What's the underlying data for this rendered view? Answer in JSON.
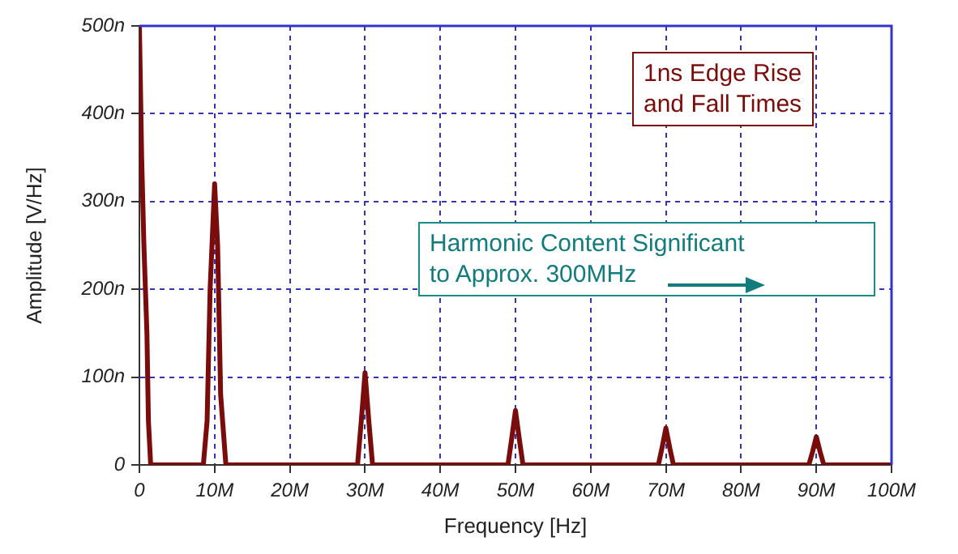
{
  "chart_data": {
    "type": "line",
    "xlabel": "Frequency [Hz]",
    "ylabel": "Amplitude [V/Hz]",
    "annotations": [
      "1ns Edge Rise\nand Fall Times",
      "Harmonic Content Significant\nto Approx. 300MHz"
    ],
    "x": [
      0,
      300000,
      600000,
      1000000,
      1200000,
      1500000,
      8500000,
      9000000,
      9400000,
      10000000,
      10400000,
      10800000,
      11500000,
      29000000,
      29500000,
      30000000,
      30500000,
      31000000,
      49000000,
      49500000,
      50000000,
      50500000,
      51000000,
      69000000,
      69500000,
      70000000,
      70500000,
      71000000,
      89000000,
      89500000,
      90000000,
      90500000,
      91000000,
      100000000
    ],
    "series": [
      {
        "color": "#7a0c0c",
        "values": [
          500,
          350,
          250,
          150,
          50,
          0,
          0,
          50,
          200,
          320,
          250,
          80,
          0,
          0,
          50,
          105,
          50,
          0,
          0,
          30,
          62,
          30,
          0,
          0,
          20,
          42,
          20,
          0,
          0,
          15,
          32,
          15,
          0,
          0
        ]
      }
    ],
    "xlim": [
      0,
      100000000
    ],
    "xticks": [
      0,
      {
        "value": 10000000,
        "label": "10M"
      },
      {
        "value": 20000000,
        "label": "20M"
      },
      {
        "value": 30000000,
        "label": "30M"
      },
      {
        "value": 40000000,
        "label": "40M"
      },
      {
        "value": 50000000,
        "label": "50M"
      },
      {
        "value": 60000000,
        "label": "60M"
      },
      {
        "value": 70000000,
        "label": "70M"
      },
      {
        "value": 80000000,
        "label": "80M"
      },
      {
        "value": 90000000,
        "label": "90M"
      },
      {
        "value": 100000000,
        "label": "100M"
      }
    ],
    "ylim": [
      0,
      500
    ],
    "yticks": [
      0,
      {
        "value": 100,
        "label": "100n"
      },
      {
        "value": 200,
        "label": "200n"
      },
      {
        "value": 300,
        "label": "300n"
      },
      {
        "value": 400,
        "label": "400n"
      },
      {
        "value": 500,
        "label": "500n"
      }
    ],
    "grid": true,
    "legend": false,
    "marker": "none",
    "line_style": "solid"
  }
}
